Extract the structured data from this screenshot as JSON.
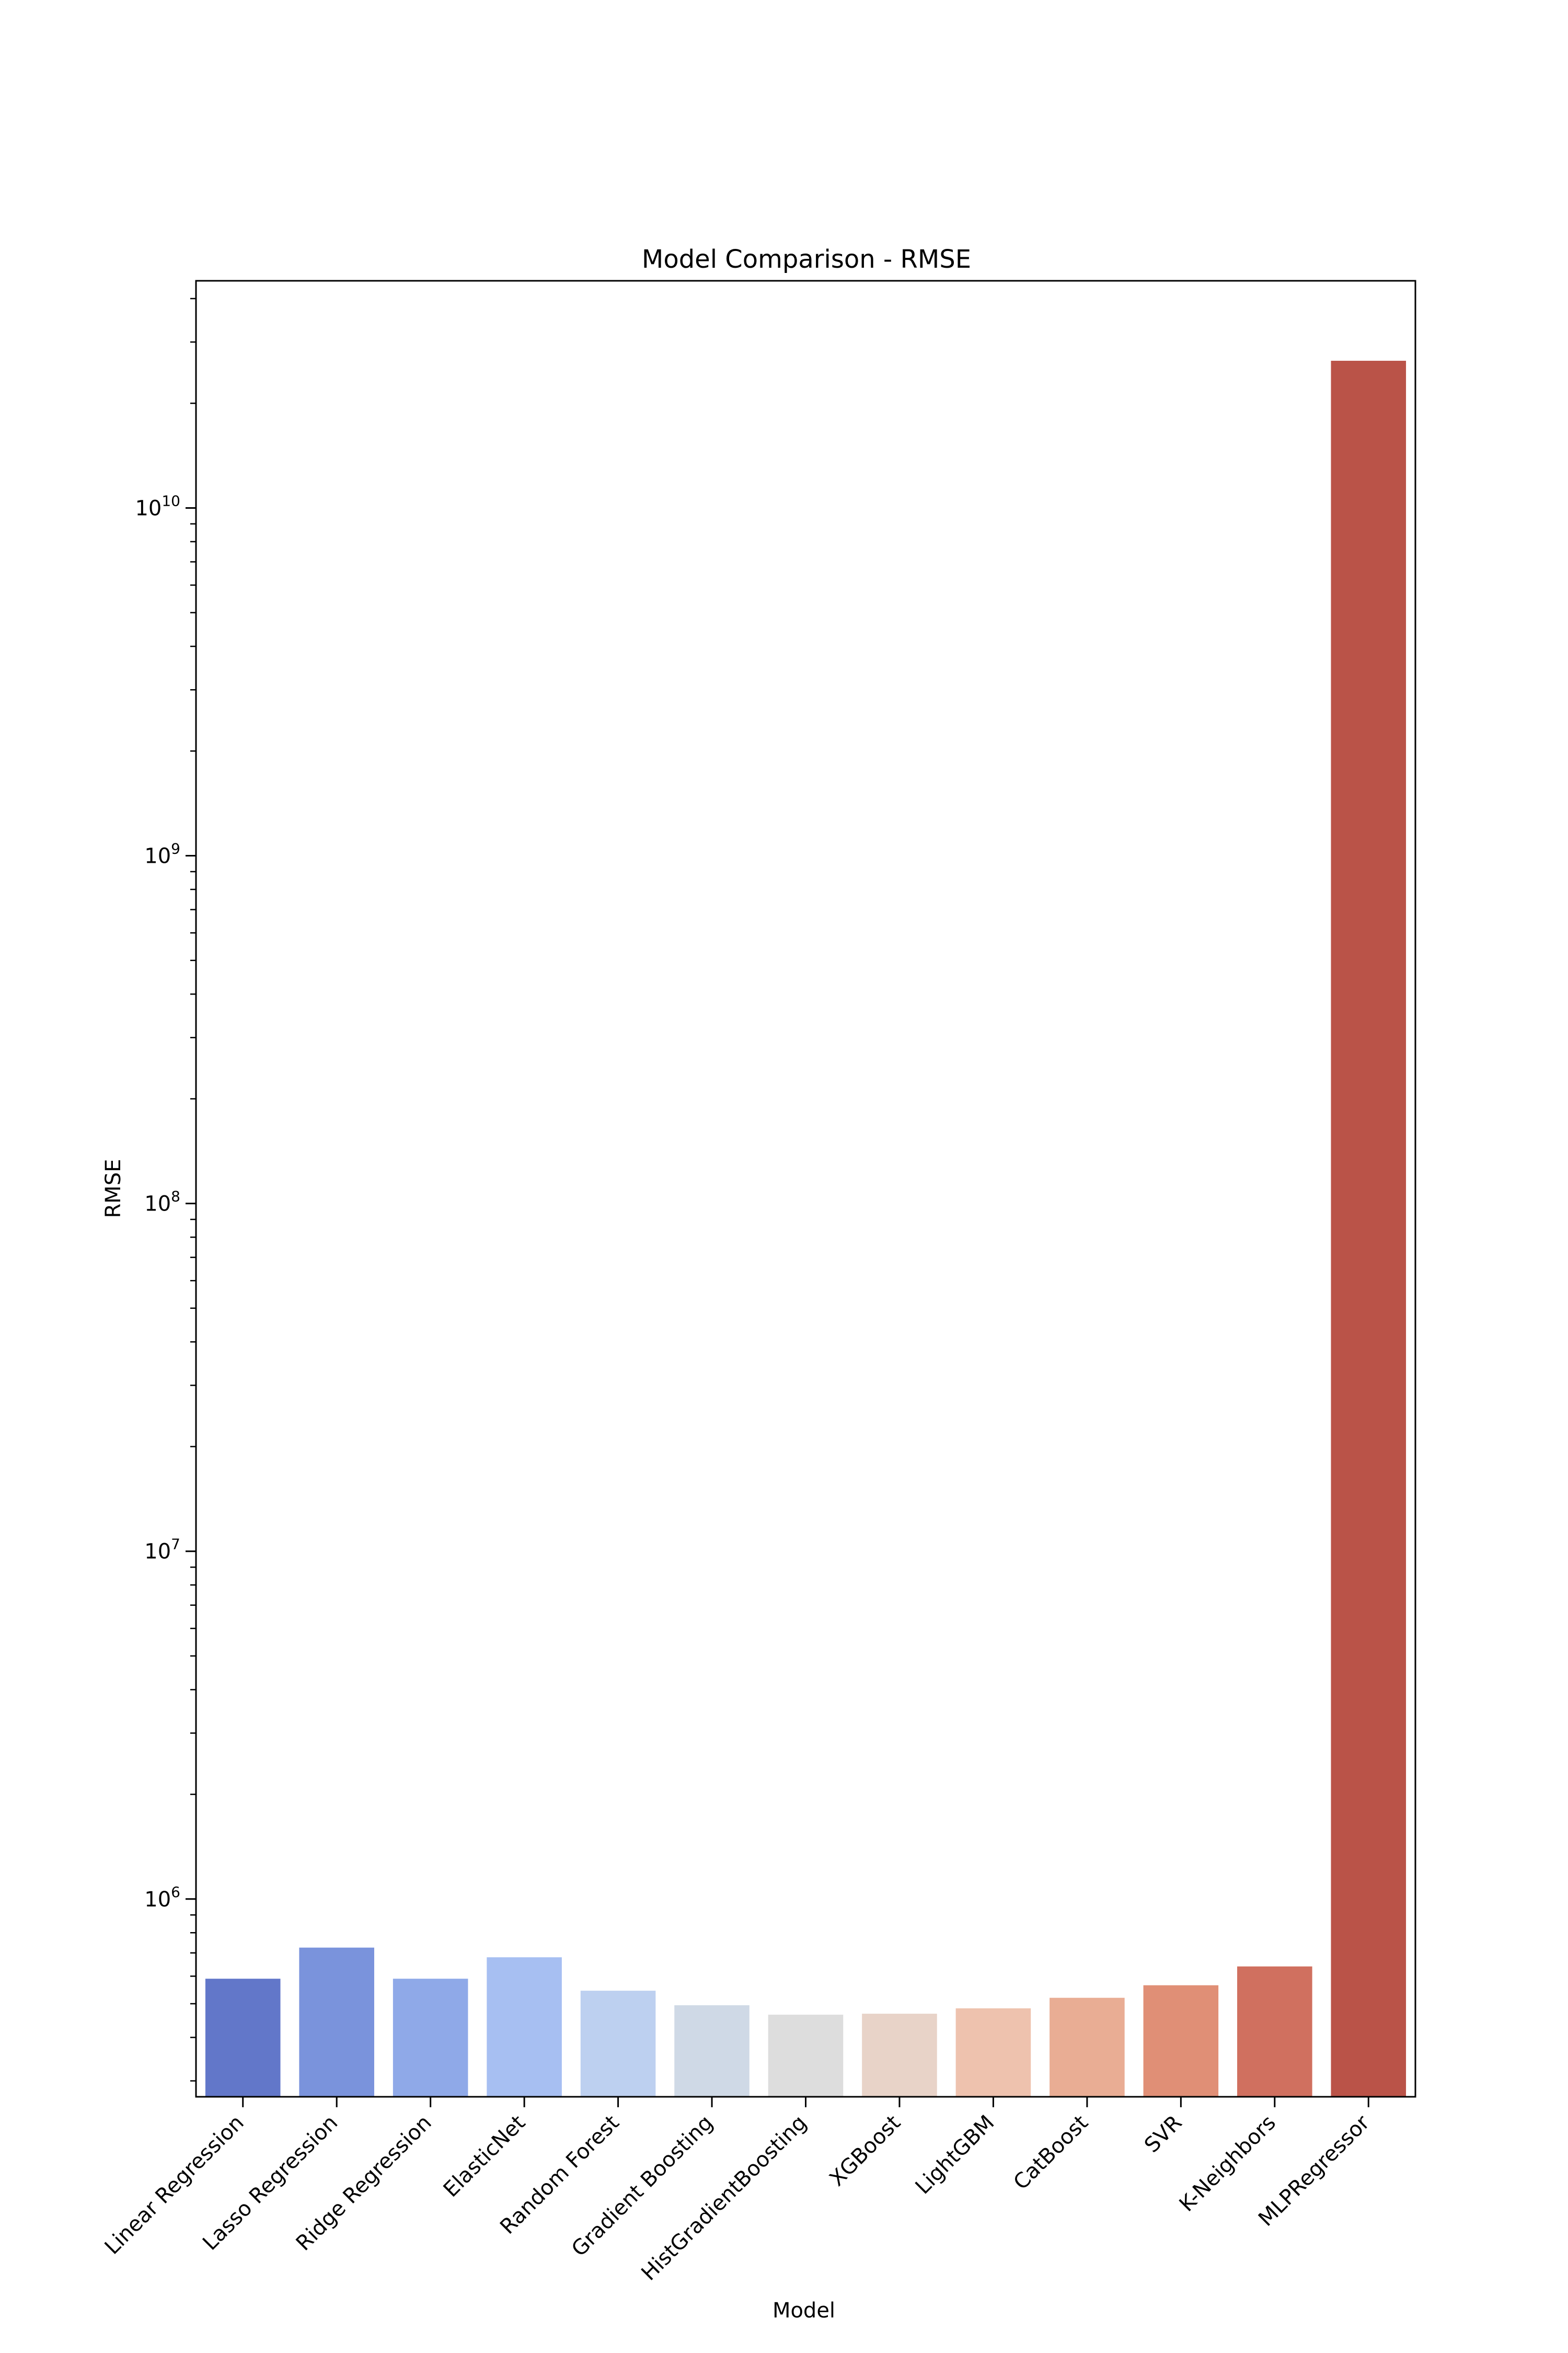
{
  "chart_data": {
    "type": "bar",
    "title": "Model Comparison - RMSE",
    "xlabel": "Model",
    "ylabel": "RMSE",
    "yscale": "log",
    "ylim": [
      270000,
      45000000000
    ],
    "ytick_values": [
      1000000,
      10000000,
      100000000,
      1000000000,
      10000000000
    ],
    "ytick_labels": [
      {
        "base": "10",
        "exp": "6"
      },
      {
        "base": "10",
        "exp": "7"
      },
      {
        "base": "10",
        "exp": "8"
      },
      {
        "base": "10",
        "exp": "9"
      },
      {
        "base": "10",
        "exp": "10"
      }
    ],
    "categories": [
      "Linear Regression",
      "Lasso Regression",
      "Ridge Regression",
      "ElasticNet",
      "Random Forest",
      "Gradient Boosting",
      "HistGradientBoosting",
      "XGBoost",
      "LightGBM",
      "CatBoost",
      "SVR",
      "K-Neighbors",
      "MLPRegressor"
    ],
    "values": [
      590000,
      725000,
      590000,
      680000,
      545000,
      495000,
      465000,
      468000,
      485000,
      520000,
      565000,
      640000,
      26500000000
    ],
    "colors": [
      "#6277c9",
      "#7a93dc",
      "#8fa9e8",
      "#a7bff2",
      "#bdd0f0",
      "#cfd9e6",
      "#dddddd",
      "#e8d3c8",
      "#eec2ae",
      "#e9ad94",
      "#e08f76",
      "#d0705f",
      "#ba5348"
    ],
    "grid": false,
    "legend": "none"
  }
}
